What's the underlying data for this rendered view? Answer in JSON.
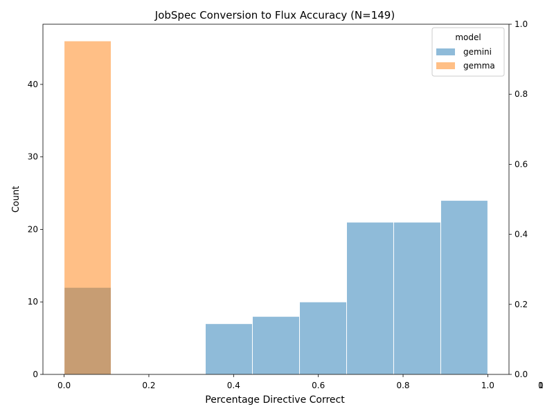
{
  "chart_data": {
    "type": "histogram",
    "title": "JobSpec Conversion to Flux Accuracy (N=149)",
    "xlabel": "Percentage Directive Correct",
    "ylabel": "Count",
    "xlim": [
      -0.05,
      1.05
    ],
    "ylim": [
      0,
      48.3
    ],
    "x_ticks": [
      0.0,
      0.2,
      0.4,
      0.6,
      0.8,
      1.0
    ],
    "x_tick_labels": [
      "0.0",
      "0.2",
      "0.4",
      "0.6",
      "0.8",
      "1.0"
    ],
    "y_ticks": [
      0,
      10,
      20,
      30,
      40
    ],
    "y_tick_labels": [
      "0",
      "10",
      "20",
      "30",
      "40"
    ],
    "secondary_y_ticks": [
      0.0,
      0.2,
      0.4,
      0.6,
      0.8,
      1.0
    ],
    "secondary_y_tick_labels": [
      "0.0",
      "0.2",
      "0.4",
      "0.6",
      "0.8",
      "1.0"
    ],
    "secondary_x_tick_labels": [
      "0",
      "1"
    ],
    "legend": {
      "title": "model",
      "placement": "top-right"
    },
    "series": [
      {
        "name": "gemini",
        "color": "#1f77b4",
        "alpha": 0.5,
        "bins": [
          {
            "x0": 0.0,
            "x1": 0.1111,
            "count": 12
          },
          {
            "x0": 0.3333,
            "x1": 0.4444,
            "count": 7
          },
          {
            "x0": 0.4444,
            "x1": 0.5556,
            "count": 8
          },
          {
            "x0": 0.5556,
            "x1": 0.6667,
            "count": 10
          },
          {
            "x0": 0.6667,
            "x1": 0.7778,
            "count": 21
          },
          {
            "x0": 0.7778,
            "x1": 0.8889,
            "count": 21
          },
          {
            "x0": 0.8889,
            "x1": 1.0,
            "count": 24
          }
        ]
      },
      {
        "name": "gemma",
        "color": "#ff7f0e",
        "alpha": 0.5,
        "bins": [
          {
            "x0": 0.0,
            "x1": 0.1111,
            "count": 46
          }
        ]
      }
    ]
  }
}
